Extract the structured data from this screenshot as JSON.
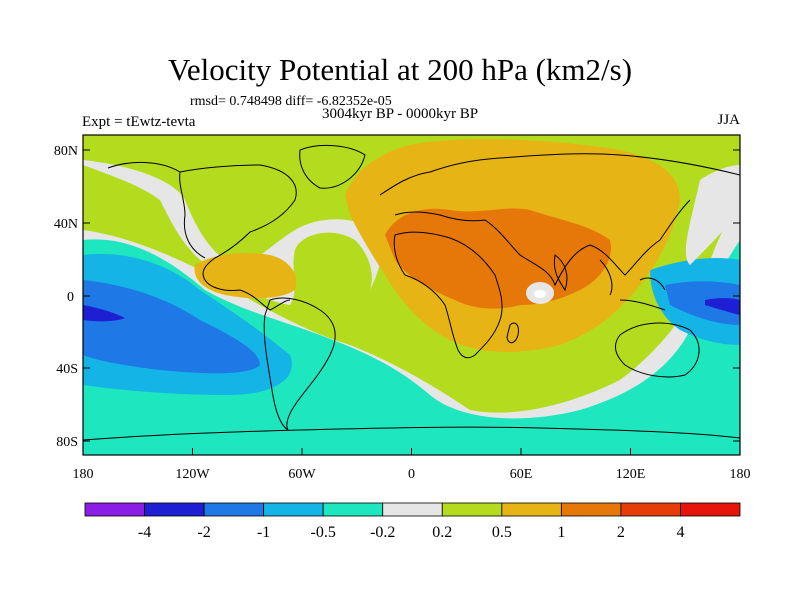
{
  "title": "Velocity Potential at 200 hPa (km2/s)",
  "stats": "rmsd= 0.748498  diff= -6.82352e-05",
  "period": "3004kyr BP - 0000kyr BP",
  "experiment": "Expt = tEwtz-tevta",
  "season": "JJA",
  "lat_labels": [
    "80N",
    "40N",
    "0",
    "40S",
    "80S"
  ],
  "lon_labels": [
    "180",
    "120W",
    "60W",
    "0",
    "60E",
    "120E",
    "180"
  ],
  "colorbar": {
    "colors": [
      "#8a1ee6",
      "#1e1ed2",
      "#1e78e6",
      "#14b4e6",
      "#1ee6be",
      "#e6e6e6",
      "#b4dc1e",
      "#e6b414",
      "#e6780a",
      "#e63c0a",
      "#e6140a"
    ],
    "labels": [
      "-4",
      "-2",
      "-1",
      "-0.5",
      "-0.2",
      "0.2",
      "0.5",
      "1",
      "2",
      "4"
    ]
  },
  "palette": {
    "land_outline": "#000000",
    "sea_default": "#b4dc1e"
  }
}
